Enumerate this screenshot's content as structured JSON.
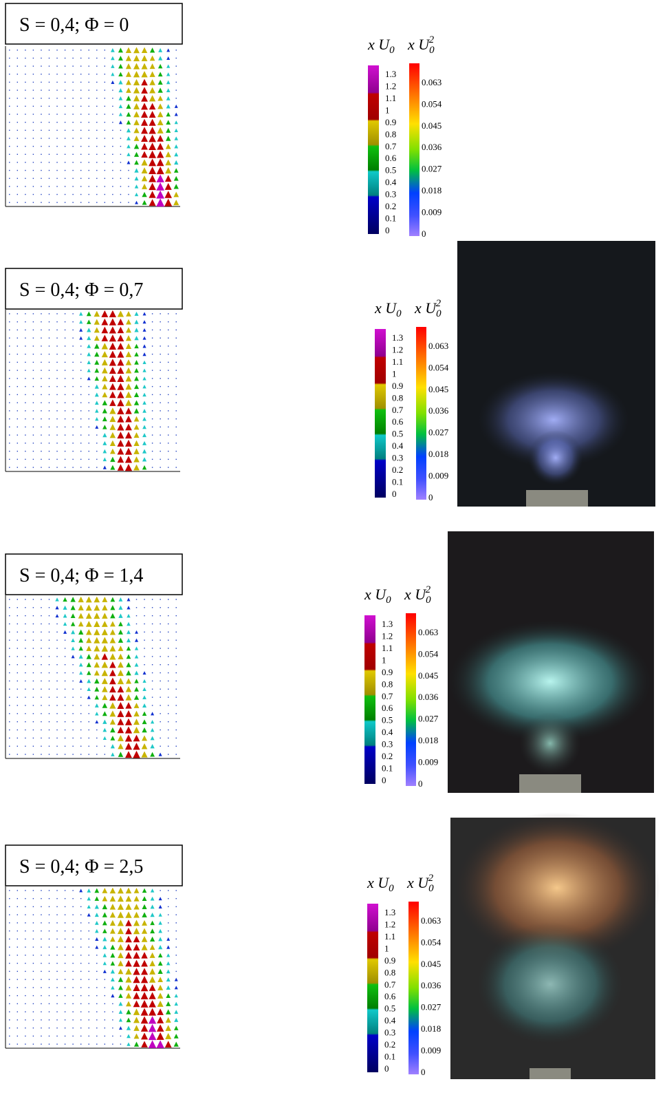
{
  "panels": [
    {
      "title": "S = 0,4; Φ = 0"
    },
    {
      "title": "S = 0,4; Φ = 0,7"
    },
    {
      "title": "S = 0,4; Φ = 1,4"
    },
    {
      "title": "S = 0,4; Φ = 2,5"
    }
  ],
  "colorbar": {
    "velocity_label": {
      "main": "x U",
      "sub": "0"
    },
    "energy_label": {
      "main": "x U",
      "sub": "0",
      "sup": "2"
    },
    "velocity_ticks": [
      "1.3",
      "1.2",
      "1.1",
      "1",
      "0.9",
      "0.8",
      "0.7",
      "0.6",
      "0.5",
      "0.4",
      "0.3",
      "0.2",
      "0.1",
      "0"
    ],
    "energy_ticks": [
      "0.063",
      "0.054",
      "0.045",
      "0.036",
      "0.027",
      "0.018",
      "0.009",
      "0"
    ]
  }
}
